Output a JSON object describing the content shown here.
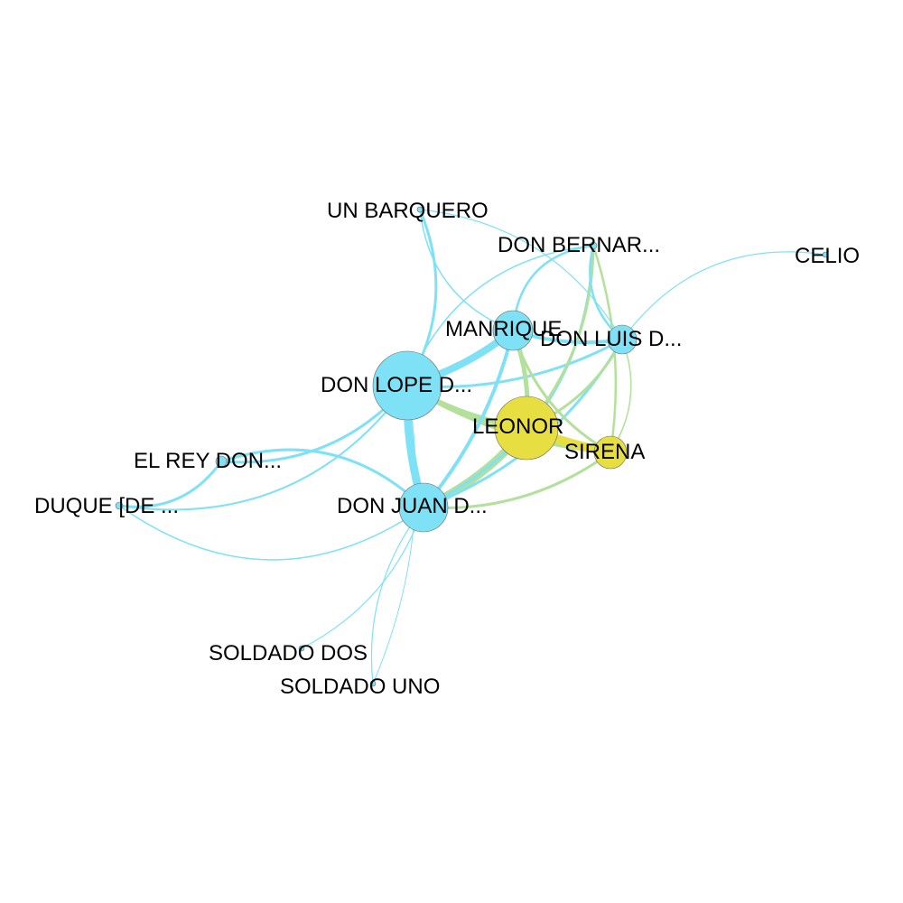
{
  "colors": {
    "male": "#7fe1f5",
    "female": "#e7df42",
    "mixed": "#b3e09a",
    "background": "#ffffff"
  },
  "nodes": [
    {
      "id": "lope",
      "label": "DON LOPE D...",
      "group": "male"
    },
    {
      "id": "juan",
      "label": "DON JUAN D...",
      "group": "male"
    },
    {
      "id": "leonor",
      "label": "LEONOR",
      "group": "female"
    },
    {
      "id": "manrique",
      "label": "MANRIQUE",
      "group": "male"
    },
    {
      "id": "luis",
      "label": "DON LUIS D...",
      "group": "male"
    },
    {
      "id": "sirena",
      "label": "SIRENA",
      "group": "female"
    },
    {
      "id": "bernardo",
      "label": "DON BERNAR...",
      "group": "male"
    },
    {
      "id": "barquero",
      "label": "UN BARQUERO",
      "group": "male"
    },
    {
      "id": "celio",
      "label": "CELIO",
      "group": "male"
    },
    {
      "id": "rey",
      "label": "EL REY DON...",
      "group": "male"
    },
    {
      "id": "duque",
      "label": "DUQUE [DE ...",
      "group": "male"
    },
    {
      "id": "soldado_dos",
      "label": "SOLDADO DOS",
      "group": "male"
    },
    {
      "id": "soldado_uno",
      "label": "SOLDADO UNO",
      "group": "male"
    }
  ],
  "edges": [
    {
      "source": "lope",
      "target": "juan",
      "group": "male"
    },
    {
      "source": "lope",
      "target": "manrique",
      "group": "male"
    },
    {
      "source": "lope",
      "target": "luis",
      "group": "male"
    },
    {
      "source": "lope",
      "target": "rey",
      "group": "male"
    },
    {
      "source": "lope",
      "target": "barquero",
      "group": "male"
    },
    {
      "source": "lope",
      "target": "leonor",
      "group": "mixed"
    },
    {
      "source": "lope",
      "target": "sirena",
      "group": "mixed"
    },
    {
      "source": "lope",
      "target": "duque",
      "group": "male"
    },
    {
      "source": "lope",
      "target": "soldado_uno",
      "group": "male"
    },
    {
      "source": "juan",
      "target": "leonor",
      "group": "mixed"
    },
    {
      "source": "juan",
      "target": "sirena",
      "group": "mixed"
    },
    {
      "source": "juan",
      "target": "manrique",
      "group": "male"
    },
    {
      "source": "juan",
      "target": "luis",
      "group": "male"
    },
    {
      "source": "juan",
      "target": "rey",
      "group": "male"
    },
    {
      "source": "juan",
      "target": "duque",
      "group": "male"
    },
    {
      "source": "juan",
      "target": "soldado_dos",
      "group": "male"
    },
    {
      "source": "juan",
      "target": "soldado_uno",
      "group": "male"
    },
    {
      "source": "juan",
      "target": "bernardo",
      "group": "male"
    },
    {
      "source": "leonor",
      "target": "sirena",
      "group": "female"
    },
    {
      "source": "leonor",
      "target": "manrique",
      "group": "mixed"
    },
    {
      "source": "leonor",
      "target": "luis",
      "group": "mixed"
    },
    {
      "source": "leonor",
      "target": "bernardo",
      "group": "mixed"
    },
    {
      "source": "sirena",
      "target": "manrique",
      "group": "mixed"
    },
    {
      "source": "sirena",
      "target": "luis",
      "group": "mixed"
    },
    {
      "source": "sirena",
      "target": "bernardo",
      "group": "mixed"
    },
    {
      "source": "manrique",
      "target": "luis",
      "group": "male"
    },
    {
      "source": "manrique",
      "target": "bernardo",
      "group": "male"
    },
    {
      "source": "manrique",
      "target": "barquero",
      "group": "male"
    },
    {
      "source": "luis",
      "target": "bernardo",
      "group": "male"
    },
    {
      "source": "luis",
      "target": "celio",
      "group": "male"
    },
    {
      "source": "luis",
      "target": "barquero",
      "group": "male"
    },
    {
      "source": "rey",
      "target": "duque",
      "group": "male"
    },
    {
      "source": "bernardo",
      "target": "lope",
      "group": "male"
    }
  ]
}
